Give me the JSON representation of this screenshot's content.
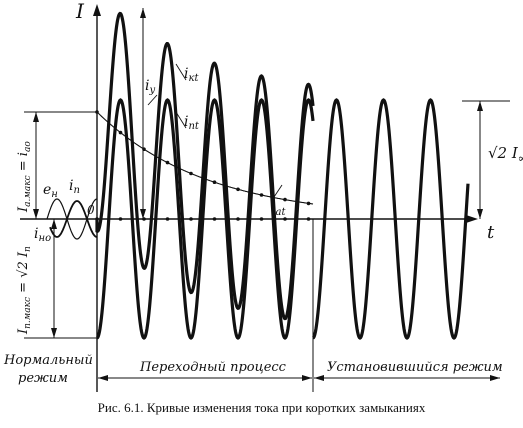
{
  "figure": {
    "caption": "Рис. 6.1. Кривые изменения тока при коротких замыканиях",
    "axis_current_label": "I",
    "axis_time_label": "t",
    "origin_label": "0",
    "curve_labels": {
      "i_y": "i",
      "i_y_sub": "y",
      "i_kt": "i",
      "i_kt_sub": "кt",
      "i_nt": "i",
      "i_nt_sub": "nt",
      "i_at": "i",
      "i_at_sub": "at",
      "e_n": "e",
      "e_n_sub": "н",
      "i_n": "i",
      "i_n_sub": "n",
      "i_no": "i",
      "i_no_sub": "но"
    },
    "left_labels": {
      "aperiodic_max": "I",
      "aperiodic_max_sub": "а.макс",
      "aperiodic_eq": " = i",
      "aperiodic_eq_sub": "ао",
      "periodic_max": "I",
      "periodic_max_sub": "п.макс",
      "periodic_eq": " = √2 I",
      "periodic_eq_sub": "п"
    },
    "steady_label": "√2 I",
    "steady_sub": "∞",
    "regions": {
      "normal_line1": "Нормальный",
      "normal_line2": "режим",
      "transient": "Переходный процесс",
      "steady": "Установившийся режим"
    }
  }
}
